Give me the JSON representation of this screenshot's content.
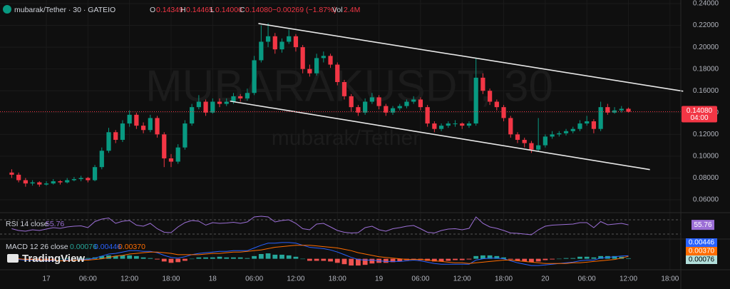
{
  "header": {
    "symbol": "mubarak/Tether · 30 · GATEIO",
    "o_label": "O",
    "h_label": "H",
    "l_label": "L",
    "low": "0.14000",
    "c_label": "C",
    "change": "−0.00269 (−1.87%)",
    "vol_label": "Vol",
    "volume": "2.4M"
  },
  "watermark": {
    "title": "MUBARAKUSDT, 30",
    "subtitle": "mubarak/Tether"
  },
  "brand": "TradingView",
  "chart_data": [
    {
      "type": "candlestick",
      "up_color": "#089981",
      "down_color": "#f23645",
      "grid": true,
      "xlim": [
        -1.69,
        96.56
      ],
      "ylim": [
        0.06,
        0.24
      ],
      "xticks": [
        {
          "value": 5,
          "label": "17"
        },
        {
          "value": 11,
          "label": "06:00"
        },
        {
          "value": 17,
          "label": "12:00"
        },
        {
          "value": 23,
          "label": "18:00"
        },
        {
          "value": 29,
          "label": "18"
        },
        {
          "value": 35,
          "label": "06:00"
        },
        {
          "value": 41,
          "label": "12:00"
        },
        {
          "value": 47,
          "label": "18:00"
        },
        {
          "value": 53,
          "label": "19"
        },
        {
          "value": 59,
          "label": "06:00"
        },
        {
          "value": 65,
          "label": "12:00"
        },
        {
          "value": 71,
          "label": "18:00"
        },
        {
          "value": 77,
          "label": "20"
        },
        {
          "value": 83,
          "label": "06:00"
        },
        {
          "value": 89,
          "label": "12:00"
        },
        {
          "value": 95,
          "label": "18:00"
        }
      ],
      "yticks": [
        {
          "value": 0.24,
          "label": "0.24000"
        },
        {
          "value": 0.22,
          "label": "0.22000"
        },
        {
          "value": 0.2,
          "label": "0.20000"
        },
        {
          "value": 0.18,
          "label": "0.18000"
        },
        {
          "value": 0.16,
          "label": "0.16000"
        },
        {
          "value": 0.14,
          "label": "0.14000"
        },
        {
          "value": 0.12,
          "label": "0.12000"
        },
        {
          "value": 0.1,
          "label": "0.10000"
        },
        {
          "value": 0.08,
          "label": "0.08000"
        },
        {
          "value": 0.06,
          "label": "0.06000"
        }
      ],
      "last_price": {
        "value": 0.1408,
        "label": "0.14080",
        "countdown": "04:00",
        "color": "#f23645"
      },
      "trendlines": [
        {
          "from": [
            35.6,
            0.2217
          ],
          "to": [
            96.9,
            0.1596
          ],
          "color": "#e8e8e8"
        },
        {
          "from": [
            31.5,
            0.1505
          ],
          "to": [
            92.1,
            0.0877
          ],
          "color": "#e8e8e8"
        }
      ],
      "ohlc": [
        [
          0.085,
          0.088,
          0.08,
          0.083
        ],
        [
          0.083,
          0.085,
          0.076,
          0.078
        ],
        [
          0.078,
          0.08,
          0.072,
          0.075
        ],
        [
          0.075,
          0.078,
          0.073,
          0.076
        ],
        [
          0.076,
          0.077,
          0.072,
          0.074
        ],
        [
          0.074,
          0.077,
          0.073,
          0.075
        ],
        [
          0.075,
          0.079,
          0.074,
          0.077
        ],
        [
          0.077,
          0.078,
          0.074,
          0.076
        ],
        [
          0.076,
          0.08,
          0.075,
          0.078
        ],
        [
          0.078,
          0.081,
          0.077,
          0.079
        ],
        [
          0.079,
          0.082,
          0.077,
          0.08
        ],
        [
          0.08,
          0.081,
          0.076,
          0.078
        ],
        [
          0.078,
          0.092,
          0.077,
          0.09
        ],
        [
          0.09,
          0.108,
          0.088,
          0.105
        ],
        [
          0.105,
          0.126,
          0.103,
          0.122
        ],
        [
          0.122,
          0.124,
          0.112,
          0.115
        ],
        [
          0.115,
          0.133,
          0.113,
          0.13
        ],
        [
          0.13,
          0.142,
          0.127,
          0.138
        ],
        [
          0.138,
          0.14,
          0.125,
          0.128
        ],
        [
          0.128,
          0.131,
          0.121,
          0.124
        ],
        [
          0.124,
          0.138,
          0.122,
          0.135
        ],
        [
          0.135,
          0.137,
          0.117,
          0.12
        ],
        [
          0.12,
          0.122,
          0.09,
          0.098
        ],
        [
          0.098,
          0.102,
          0.09,
          0.095
        ],
        [
          0.095,
          0.111,
          0.093,
          0.108
        ],
        [
          0.108,
          0.133,
          0.106,
          0.13
        ],
        [
          0.13,
          0.148,
          0.128,
          0.145
        ],
        [
          0.145,
          0.156,
          0.143,
          0.15
        ],
        [
          0.15,
          0.152,
          0.137,
          0.14
        ],
        [
          0.14,
          0.153,
          0.139,
          0.15
        ],
        [
          0.15,
          0.153,
          0.145,
          0.148
        ],
        [
          0.148,
          0.153,
          0.146,
          0.15
        ],
        [
          0.15,
          0.158,
          0.148,
          0.155
        ],
        [
          0.155,
          0.157,
          0.15,
          0.153
        ],
        [
          0.153,
          0.162,
          0.151,
          0.158
        ],
        [
          0.158,
          0.192,
          0.156,
          0.188
        ],
        [
          0.188,
          0.22,
          0.186,
          0.205
        ],
        [
          0.205,
          0.222,
          0.2,
          0.21
        ],
        [
          0.21,
          0.213,
          0.194,
          0.198
        ],
        [
          0.198,
          0.208,
          0.195,
          0.205
        ],
        [
          0.205,
          0.216,
          0.203,
          0.21
        ],
        [
          0.21,
          0.212,
          0.196,
          0.2
        ],
        [
          0.2,
          0.202,
          0.176,
          0.18
        ],
        [
          0.18,
          0.184,
          0.173,
          0.176
        ],
        [
          0.176,
          0.194,
          0.174,
          0.19
        ],
        [
          0.19,
          0.196,
          0.186,
          0.192
        ],
        [
          0.192,
          0.194,
          0.181,
          0.184
        ],
        [
          0.184,
          0.186,
          0.165,
          0.168
        ],
        [
          0.168,
          0.17,
          0.152,
          0.155
        ],
        [
          0.155,
          0.157,
          0.141,
          0.145
        ],
        [
          0.145,
          0.147,
          0.137,
          0.14
        ],
        [
          0.14,
          0.153,
          0.138,
          0.15
        ],
        [
          0.15,
          0.158,
          0.148,
          0.154
        ],
        [
          0.154,
          0.156,
          0.143,
          0.146
        ],
        [
          0.146,
          0.148,
          0.137,
          0.14
        ],
        [
          0.14,
          0.146,
          0.138,
          0.144
        ],
        [
          0.144,
          0.148,
          0.142,
          0.146
        ],
        [
          0.146,
          0.152,
          0.144,
          0.15
        ],
        [
          0.15,
          0.155,
          0.148,
          0.152
        ],
        [
          0.152,
          0.154,
          0.142,
          0.145
        ],
        [
          0.145,
          0.147,
          0.127,
          0.13
        ],
        [
          0.13,
          0.132,
          0.122,
          0.125
        ],
        [
          0.125,
          0.13,
          0.123,
          0.128
        ],
        [
          0.128,
          0.132,
          0.126,
          0.13
        ],
        [
          0.13,
          0.133,
          0.127,
          0.13
        ],
        [
          0.13,
          0.131,
          0.125,
          0.128
        ],
        [
          0.128,
          0.132,
          0.126,
          0.13
        ],
        [
          0.13,
          0.19,
          0.128,
          0.172
        ],
        [
          0.172,
          0.176,
          0.157,
          0.16
        ],
        [
          0.16,
          0.162,
          0.147,
          0.15
        ],
        [
          0.15,
          0.152,
          0.142,
          0.145
        ],
        [
          0.145,
          0.147,
          0.132,
          0.135
        ],
        [
          0.135,
          0.137,
          0.117,
          0.12
        ],
        [
          0.12,
          0.122,
          0.112,
          0.115
        ],
        [
          0.115,
          0.117,
          0.108,
          0.112
        ],
        [
          0.112,
          0.114,
          0.103,
          0.106
        ],
        [
          0.106,
          0.135,
          0.104,
          0.11
        ],
        [
          0.11,
          0.12,
          0.108,
          0.118
        ],
        [
          0.118,
          0.123,
          0.116,
          0.12
        ],
        [
          0.12,
          0.123,
          0.118,
          0.121
        ],
        [
          0.121,
          0.125,
          0.119,
          0.123
        ],
        [
          0.123,
          0.127,
          0.121,
          0.125
        ],
        [
          0.125,
          0.133,
          0.123,
          0.13
        ],
        [
          0.13,
          0.137,
          0.128,
          0.132
        ],
        [
          0.132,
          0.134,
          0.121,
          0.125
        ],
        [
          0.125,
          0.15,
          0.123,
          0.145
        ],
        [
          0.145,
          0.148,
          0.138,
          0.14
        ],
        [
          0.14,
          0.145,
          0.139,
          0.142
        ],
        [
          0.142,
          0.146,
          0.14,
          0.14349
        ],
        [
          0.14349,
          0.14465,
          0.14,
          0.1408
        ]
      ]
    },
    {
      "type": "line",
      "label": "RSI 14 close",
      "color": "#9c6fd6",
      "ylim": [
        20,
        80
      ],
      "bands": [
        30,
        70
      ],
      "values": [
        45,
        40,
        38,
        42,
        40,
        44,
        48,
        46,
        50,
        52,
        53,
        48,
        65,
        72,
        75,
        60,
        66,
        68,
        55,
        52,
        60,
        45,
        35,
        34,
        50,
        62,
        68,
        66,
        55,
        62,
        60,
        61,
        63,
        60,
        64,
        78,
        80,
        78,
        64,
        68,
        70,
        60,
        45,
        42,
        58,
        60,
        50,
        40,
        35,
        33,
        34,
        48,
        52,
        42,
        38,
        45,
        48,
        52,
        54,
        45,
        35,
        33,
        40,
        44,
        45,
        42,
        46,
        78,
        60,
        50,
        46,
        40,
        33,
        32,
        30,
        28,
        42,
        52,
        55,
        56,
        57,
        58,
        62,
        62,
        48,
        65,
        56,
        58,
        60,
        55.76
      ]
    },
    {
      "type": "macd",
      "label": "MACD 12 26 close",
      "ylim": [
        -0.012,
        0.026
      ],
      "histogram": {
        "up_color": "#26a69a",
        "down_color": "#ef5350",
        "values": [
          0,
          -0.001,
          -0.001,
          -0.001,
          -0.001,
          -0.001,
          -0.001,
          0,
          0.001,
          0,
          0.001,
          0.001,
          0.002,
          0.004,
          0.005,
          0.004,
          0.005,
          0.005,
          0.004,
          0.002,
          0.001,
          -0.001,
          -0.004,
          -0.006,
          -0.005,
          -0.003,
          0,
          0.002,
          0.002,
          0.002,
          0.003,
          0.002,
          0.002,
          0.002,
          0.001,
          0.004,
          0.007,
          0.008,
          0.006,
          0.006,
          0.005,
          0.003,
          0,
          -0.003,
          -0.003,
          -0.003,
          -0.004,
          -0.006,
          -0.008,
          -0.01,
          -0.01,
          -0.009,
          -0.007,
          -0.006,
          -0.006,
          -0.005,
          -0.004,
          -0.002,
          -0.001,
          -0.002,
          -0.003,
          -0.004,
          -0.004,
          -0.003,
          -0.002,
          -0.002,
          -0.001,
          0.004,
          0.005,
          0.005,
          0.004,
          0.002,
          -0.001,
          -0.003,
          -0.004,
          -0.005,
          -0.004,
          -0.002,
          -0.001,
          0,
          0.001,
          0.001,
          0.003,
          0.003,
          0.002,
          0.004,
          0.004,
          0.004,
          0.003,
          0.00076
        ]
      },
      "macd": {
        "color": "#2962ff",
        "last_label": "0.00446",
        "values": [
          0,
          -0.001,
          -0.002,
          -0.002,
          -0.003,
          -0.003,
          -0.003,
          -0.003,
          -0.002,
          -0.002,
          -0.001,
          -0.001,
          0.001,
          0.004,
          0.007,
          0.008,
          0.01,
          0.012,
          0.012,
          0.011,
          0.011,
          0.009,
          0.005,
          0.002,
          0.001,
          0.003,
          0.006,
          0.008,
          0.009,
          0.01,
          0.011,
          0.011,
          0.012,
          0.012,
          0.012,
          0.016,
          0.02,
          0.023,
          0.023,
          0.024,
          0.024,
          0.023,
          0.02,
          0.017,
          0.016,
          0.015,
          0.013,
          0.01,
          0.006,
          0.002,
          -0.001,
          -0.002,
          -0.002,
          -0.003,
          -0.004,
          -0.004,
          -0.004,
          -0.003,
          -0.002,
          -0.003,
          -0.005,
          -0.007,
          -0.008,
          -0.008,
          -0.008,
          -0.008,
          -0.008,
          -0.002,
          0.0,
          0.001,
          0.001,
          0.0,
          -0.003,
          -0.006,
          -0.008,
          -0.01,
          -0.01,
          -0.009,
          -0.008,
          -0.007,
          -0.006,
          -0.005,
          -0.003,
          -0.002,
          -0.002,
          0.001,
          0.002,
          0.003,
          0.004,
          0.00446
        ]
      },
      "signal": {
        "color": "#ff6d00",
        "last_label": "0.00370",
        "values": [
          0,
          0,
          -0.001,
          -0.001,
          -0.002,
          -0.002,
          -0.002,
          -0.003,
          -0.003,
          -0.002,
          -0.002,
          -0.002,
          -0.001,
          0.0,
          0.002,
          0.004,
          0.005,
          0.007,
          0.008,
          0.009,
          0.01,
          0.01,
          0.009,
          0.008,
          0.006,
          0.006,
          0.006,
          0.006,
          0.007,
          0.008,
          0.008,
          0.009,
          0.01,
          0.01,
          0.011,
          0.012,
          0.013,
          0.015,
          0.017,
          0.018,
          0.019,
          0.02,
          0.02,
          0.02,
          0.019,
          0.018,
          0.017,
          0.016,
          0.014,
          0.012,
          0.009,
          0.007,
          0.005,
          0.003,
          0.002,
          0.001,
          0.0,
          -0.001,
          -0.001,
          -0.001,
          -0.002,
          -0.003,
          -0.004,
          -0.005,
          -0.006,
          -0.006,
          -0.007,
          -0.006,
          -0.005,
          -0.004,
          -0.003,
          -0.002,
          -0.002,
          -0.003,
          -0.004,
          -0.005,
          -0.006,
          -0.007,
          -0.007,
          -0.007,
          -0.007,
          -0.006,
          -0.006,
          -0.005,
          -0.004,
          -0.003,
          -0.002,
          -0.001,
          0.001,
          0.0037
        ]
      }
    }
  ]
}
